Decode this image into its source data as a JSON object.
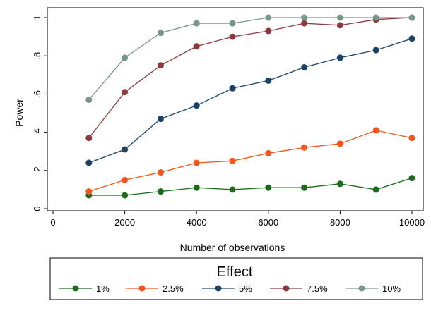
{
  "chart_data": {
    "type": "line",
    "xlabel": "Number of observations",
    "ylabel": "Power",
    "xlim": [
      0,
      10000
    ],
    "ylim": [
      0,
      1
    ],
    "xticks": [
      0,
      2000,
      4000,
      6000,
      8000,
      10000
    ],
    "xtick_labels": [
      "0",
      "2000",
      "4000",
      "6000",
      "8000",
      "10000"
    ],
    "yticks": [
      0,
      0.2,
      0.4,
      0.6,
      0.8,
      1
    ],
    "ytick_labels": [
      "0",
      ".2",
      ".4",
      ".6",
      ".8",
      "1"
    ],
    "grid": false,
    "legend": {
      "title": "Effect",
      "placement": "bottom",
      "entries": [
        "1%",
        "2.5%",
        "5%",
        "7.5%",
        "10%"
      ]
    },
    "x": [
      1000,
      2000,
      3000,
      4000,
      5000,
      6000,
      7000,
      8000,
      9000,
      10000
    ],
    "series": [
      {
        "name": "1%",
        "color": "#1a6b1a",
        "values": [
          0.07,
          0.07,
          0.09,
          0.11,
          0.1,
          0.11,
          0.11,
          0.13,
          0.1,
          0.16
        ]
      },
      {
        "name": "2.5%",
        "color": "#f0561e",
        "values": [
          0.09,
          0.15,
          0.19,
          0.24,
          0.25,
          0.29,
          0.32,
          0.34,
          0.41,
          0.37
        ]
      },
      {
        "name": "5%",
        "color": "#1b4367",
        "values": [
          0.24,
          0.31,
          0.47,
          0.54,
          0.63,
          0.67,
          0.74,
          0.79,
          0.83,
          0.89
        ]
      },
      {
        "name": "7.5%",
        "color": "#8b3a3e",
        "values": [
          0.37,
          0.61,
          0.75,
          0.85,
          0.9,
          0.93,
          0.97,
          0.96,
          0.99,
          1.0
        ]
      },
      {
        "name": "10%",
        "color": "#78968a",
        "values": [
          0.57,
          0.79,
          0.92,
          0.97,
          0.97,
          1.0,
          1.0,
          1.0,
          1.0,
          1.0
        ]
      }
    ]
  }
}
